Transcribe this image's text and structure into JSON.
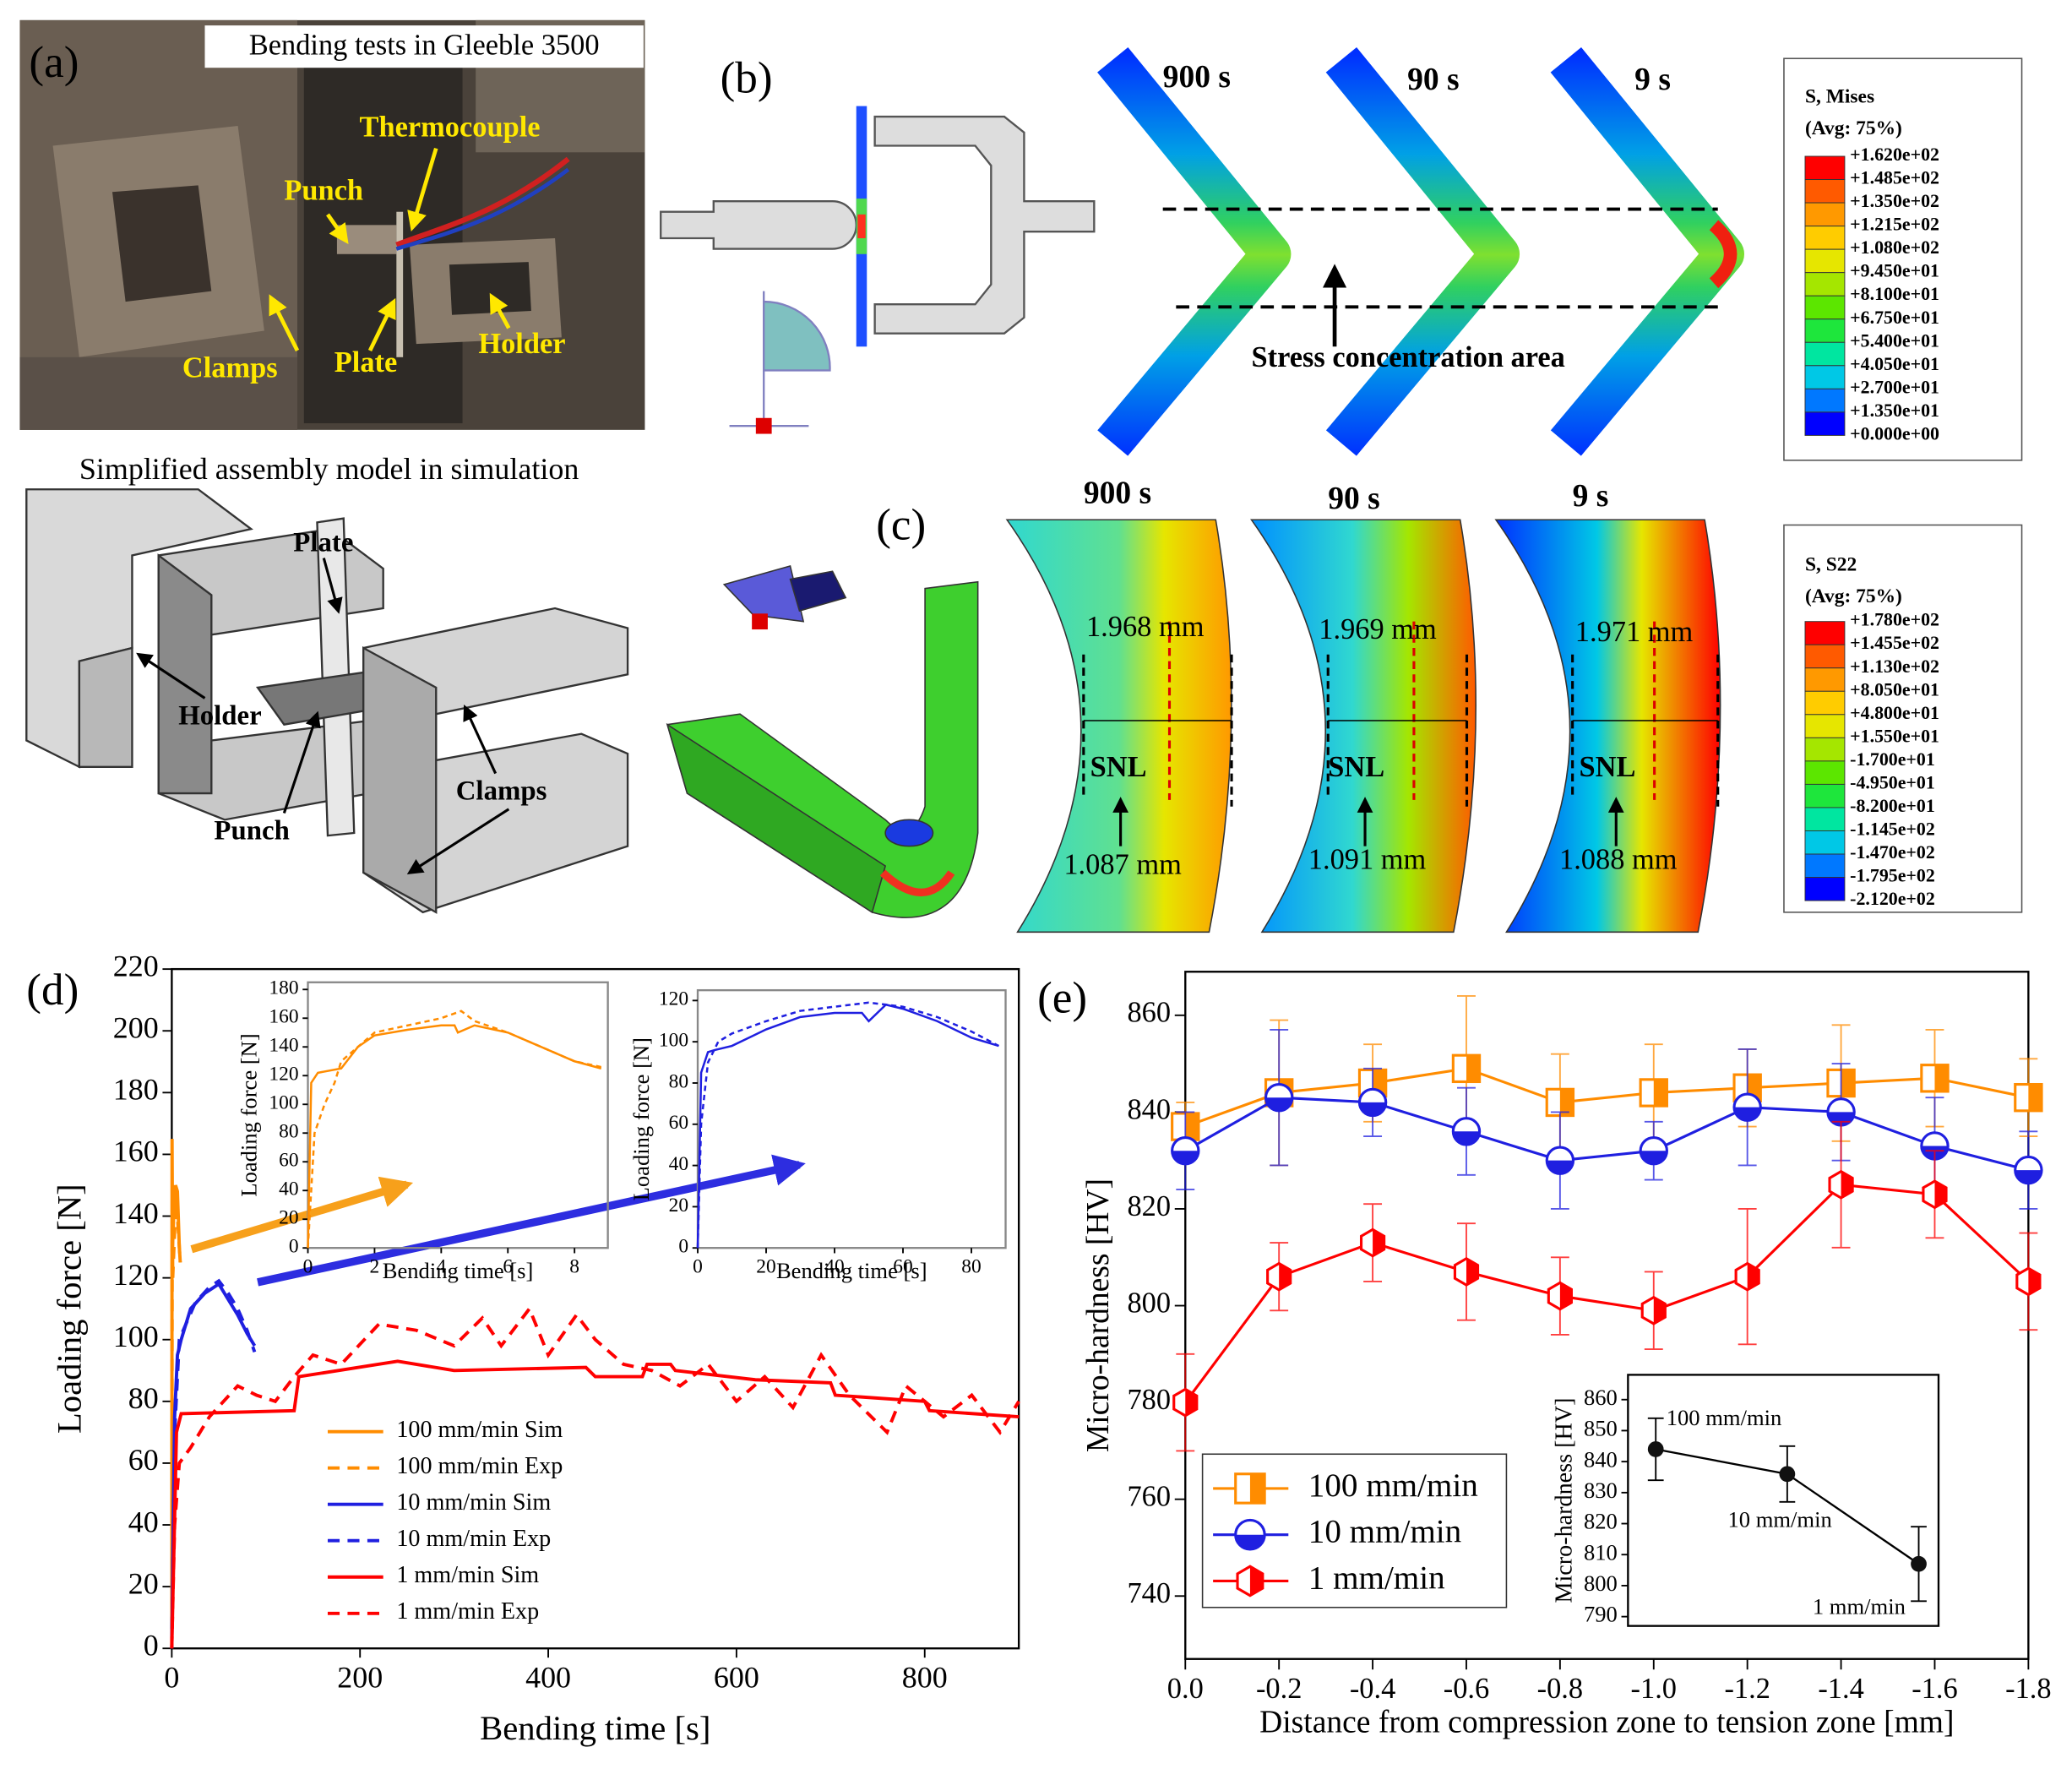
{
  "figure": {
    "a": {
      "label": "(a)",
      "photo_title": "Bending tests in Gleeble 3500",
      "photo_labels": [
        "Thermocouple",
        "Punch",
        "Clamps",
        "Plate",
        "Holder"
      ],
      "model_title": "Simplified assembly model in simulation",
      "model_labels": [
        "Plate",
        "Holder",
        "Punch",
        "Clamps"
      ]
    },
    "b": {
      "label": "(b)",
      "times": [
        "900 s",
        "90 s",
        "9 s"
      ],
      "annotation": "Stress concentration area",
      "legend_title": [
        "S, Mises",
        "(Avg: 75%)"
      ],
      "legend_values": [
        "+1.620e+02",
        "+1.485e+02",
        "+1.350e+02",
        "+1.215e+02",
        "+1.080e+02",
        "+9.450e+01",
        "+8.100e+01",
        "+6.750e+01",
        "+5.400e+01",
        "+4.050e+01",
        "+2.700e+01",
        "+1.350e+01",
        "+0.000e+00"
      ],
      "legend_colors": [
        "#ff0000",
        "#ff5a00",
        "#ff9900",
        "#ffcc00",
        "#e6e600",
        "#a5e600",
        "#5ce600",
        "#1ee63c",
        "#00e6a0",
        "#00c8e6",
        "#0078ff",
        "#0000ff"
      ]
    },
    "c": {
      "label": "(c)",
      "times": [
        "900 s",
        "90 s",
        "9 s"
      ],
      "upper": [
        "1.968 mm",
        "1.969 mm",
        "1.971 mm"
      ],
      "snl": [
        "SNL",
        "SNL",
        "SNL"
      ],
      "lower": [
        "1.087 mm",
        "1.091 mm",
        "1.088 mm"
      ],
      "legend_title": [
        "S, S22",
        "(Avg: 75%)"
      ],
      "legend_values": [
        "+1.780e+02",
        "+1.455e+02",
        "+1.130e+02",
        "+8.050e+01",
        "+4.800e+01",
        "+1.550e+01",
        "-1.700e+01",
        "-4.950e+01",
        "-8.200e+01",
        "-1.145e+02",
        "-1.470e+02",
        "-1.795e+02",
        "-2.120e+02"
      ],
      "legend_colors": [
        "#ff0000",
        "#ff5a00",
        "#ff9900",
        "#ffcc00",
        "#e6e600",
        "#a5e600",
        "#5ce600",
        "#1ee63c",
        "#00e6a0",
        "#00c8e6",
        "#0078ff",
        "#0000ff"
      ]
    }
  },
  "chart_data": [
    {
      "type": "line",
      "panel_label": "(d)",
      "x_label": "Bending time [s]",
      "y_label": "Loading force [N]",
      "xlim": [
        0,
        900
      ],
      "ylim": [
        0,
        220
      ],
      "xticks": [
        0,
        200,
        400,
        600,
        800
      ],
      "yticks": [
        0,
        20,
        40,
        60,
        80,
        100,
        120,
        140,
        160,
        180,
        200,
        220
      ],
      "legend": "lower center",
      "series": [
        {
          "name": "100 mm/min Sim",
          "color": "#ff8c00",
          "line_style": "solid",
          "x": [
            0,
            0.3,
            0.8,
            2,
            4,
            6,
            8,
            9
          ],
          "values": [
            0,
            165,
            130,
            140,
            150,
            148,
            130,
            125
          ]
        },
        {
          "name": "100 mm/min Exp",
          "color": "#ff8c00",
          "line_style": "dashed",
          "x": [
            0,
            0.5,
            1,
            3,
            5,
            7,
            9
          ],
          "values": [
            0,
            150,
            120,
            135,
            145,
            135,
            125
          ]
        },
        {
          "name": "10 mm/min Sim",
          "color": "#1f1fe0",
          "line_style": "solid",
          "x": [
            0,
            3,
            6,
            10,
            20,
            35,
            50,
            60,
            70,
            80,
            88
          ],
          "values": [
            0,
            75,
            95,
            100,
            110,
            115,
            118,
            113,
            108,
            102,
            98
          ]
        },
        {
          "name": "10 mm/min Exp",
          "color": "#1f1fe0",
          "line_style": "dashed",
          "x": [
            0,
            3,
            8,
            15,
            25,
            40,
            50,
            60,
            70,
            80,
            88
          ],
          "values": [
            0,
            70,
            100,
            105,
            112,
            117,
            119,
            115,
            110,
            103,
            96
          ]
        },
        {
          "name": "1 mm/min Sim",
          "color": "#ff0000",
          "line_style": "solid",
          "x": [
            0,
            5,
            10,
            130,
            135,
            240,
            300,
            440,
            450,
            500,
            505,
            530,
            535,
            620,
            700,
            705,
            800,
            805,
            900
          ],
          "values": [
            0,
            70,
            76,
            77,
            88,
            93,
            90,
            91,
            88,
            88,
            92,
            92,
            90,
            87,
            86,
            82,
            80,
            77,
            75
          ]
        },
        {
          "name": "1 mm/min Exp",
          "color": "#ff0000",
          "line_style": "dashed",
          "x": [
            0,
            3,
            8,
            20,
            40,
            70,
            90,
            110,
            130,
            150,
            180,
            220,
            260,
            300,
            330,
            350,
            380,
            400,
            430,
            450,
            480,
            510,
            540,
            570,
            600,
            630,
            660,
            690,
            720,
            760,
            780,
            820,
            850,
            880,
            900
          ],
          "values": [
            0,
            40,
            60,
            65,
            75,
            85,
            82,
            80,
            88,
            95,
            92,
            105,
            103,
            98,
            107,
            98,
            110,
            95,
            108,
            100,
            92,
            90,
            85,
            92,
            80,
            88,
            78,
            95,
            82,
            70,
            85,
            75,
            82,
            70,
            80
          ]
        }
      ]
    },
    {
      "type": "line",
      "x_label": "Bending time [s]",
      "y_label": "Loading force [N]",
      "xlim": [
        0,
        9
      ],
      "ylim": [
        0,
        185
      ],
      "xticks": [
        0,
        2,
        4,
        6,
        8
      ],
      "yticks": [
        0,
        20,
        40,
        60,
        80,
        100,
        120,
        140,
        160,
        180
      ],
      "series": [
        {
          "color": "#ff8c00",
          "line_style": "solid",
          "x": [
            0,
            0.1,
            0.3,
            1,
            1.5,
            2,
            3,
            4,
            4.4,
            4.5,
            5,
            6,
            7,
            8,
            8.8
          ],
          "values": [
            0,
            115,
            122,
            125,
            140,
            148,
            152,
            155,
            155,
            150,
            155,
            150,
            140,
            130,
            125
          ]
        },
        {
          "color": "#ff8c00",
          "line_style": "dashed",
          "x": [
            0,
            0.2,
            0.5,
            0.8,
            1,
            1.5,
            2,
            3,
            4,
            4.6,
            5,
            6,
            7,
            8,
            8.8
          ],
          "values": [
            0,
            80,
            100,
            115,
            130,
            140,
            150,
            155,
            160,
            165,
            158,
            150,
            140,
            130,
            126
          ]
        }
      ]
    },
    {
      "type": "line",
      "x_label": "Bending time [s]",
      "y_label": "Loading force [N]",
      "xlim": [
        0,
        90
      ],
      "ylim": [
        0,
        125
      ],
      "xticks": [
        0,
        20,
        40,
        60,
        80
      ],
      "yticks": [
        0,
        20,
        40,
        60,
        80,
        100,
        120
      ],
      "series": [
        {
          "color": "#1f1fe0",
          "line_style": "solid",
          "x": [
            0,
            1,
            3,
            5,
            10,
            20,
            30,
            40,
            48,
            50,
            55,
            60,
            70,
            80,
            88
          ],
          "values": [
            0,
            85,
            95,
            96,
            98,
            106,
            112,
            114,
            114,
            110,
            118,
            116,
            110,
            102,
            98
          ]
        },
        {
          "color": "#1f1fe0",
          "line_style": "dashed",
          "x": [
            0,
            1,
            3,
            6,
            10,
            20,
            30,
            40,
            50,
            60,
            70,
            80,
            88
          ],
          "values": [
            0,
            60,
            90,
            100,
            104,
            110,
            115,
            117,
            119,
            117,
            112,
            105,
            98
          ]
        }
      ]
    },
    {
      "type": "line",
      "panel_label": "(e)",
      "x_label": "Distance from compression zone to tension zone [mm]",
      "y_label": "Micro-hardness [HV]",
      "xlim": [
        0,
        -1.8
      ],
      "ylim": [
        727,
        869
      ],
      "xticks": [
        {
          "value": 0,
          "label": "0.0"
        },
        -0.2,
        -0.4,
        -0.6,
        -0.8,
        {
          "value": -1,
          "label": "-1.0"
        },
        -1.2,
        -1.4,
        -1.6,
        -1.8
      ],
      "yticks": [
        740,
        760,
        780,
        800,
        820,
        840,
        860
      ],
      "legend": "lower left",
      "x": [
        0,
        -0.2,
        -0.4,
        -0.6,
        -0.8,
        -1,
        -1.2,
        -1.4,
        -1.6,
        -1.8
      ],
      "series": [
        {
          "name": "100 mm/min",
          "color": "#ff8c00",
          "marker": "square",
          "values": [
            837,
            844,
            846,
            849,
            842,
            844,
            845,
            846,
            847,
            843
          ],
          "errors": [
            5,
            15,
            8,
            15,
            10,
            10,
            8,
            12,
            10,
            8
          ]
        },
        {
          "name": "10 mm/min",
          "color": "#1f1fe0",
          "marker": "circle",
          "values": [
            832,
            843,
            842,
            836,
            830,
            832,
            841,
            840,
            833,
            828
          ],
          "errors": [
            8,
            14,
            7,
            9,
            10,
            6,
            12,
            10,
            10,
            8
          ]
        },
        {
          "name": "1 mm/min",
          "color": "#ff0000",
          "marker": "hexagon",
          "values": [
            780,
            806,
            813,
            807,
            802,
            799,
            806,
            825,
            823,
            805
          ],
          "errors": [
            10,
            7,
            8,
            10,
            8,
            8,
            14,
            13,
            9,
            10
          ]
        }
      ]
    },
    {
      "type": "errorbar",
      "y_label": "Micro-hardness [HV]",
      "ylim": [
        787,
        868
      ],
      "yticks": [
        790,
        800,
        810,
        820,
        830,
        840,
        850,
        860
      ],
      "categories": [
        "100 mm/min",
        "10 mm/min",
        "1 mm/min"
      ],
      "values": [
        844,
        836,
        807
      ],
      "errors": [
        10,
        9,
        12
      ],
      "color": "#000000"
    }
  ]
}
